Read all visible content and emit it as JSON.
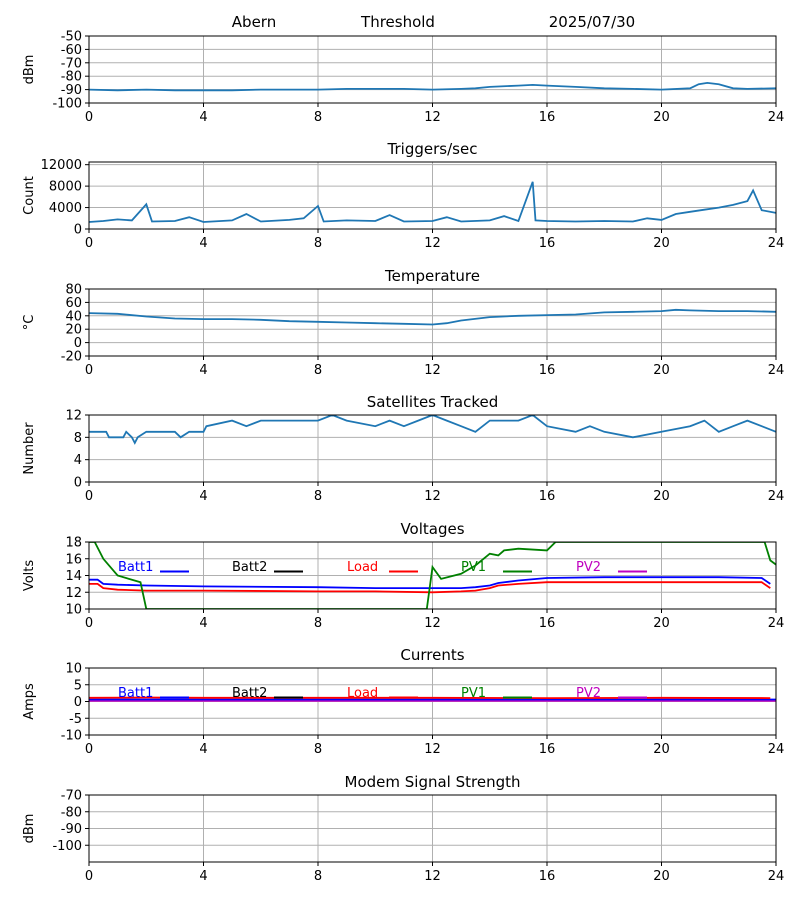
{
  "header": {
    "station": "Abern",
    "mode": "Threshold",
    "date": "2025/07/30"
  },
  "colors": {
    "series": "#1f77b4",
    "grid": "#b0b0b0",
    "batt1": "#0000ff",
    "batt2": "#000000",
    "load": "#ff0000",
    "pv1": "#008000",
    "pv2": "#bf00bf"
  },
  "chart_data": [
    {
      "type": "line",
      "title": "",
      "xlabel": "",
      "ylabel": "dBm",
      "xlim": [
        0,
        24
      ],
      "ylim": [
        -100,
        -50
      ],
      "grid": true,
      "xticks": [
        "0",
        "4",
        "8",
        "12",
        "16",
        "20",
        "24"
      ],
      "yticks": [
        "-50",
        "-60",
        "-70",
        "-80",
        "-90",
        "-100"
      ],
      "series": [
        {
          "values": [
            [
              0,
              -90
            ],
            [
              1,
              -90.5
            ],
            [
              2,
              -90
            ],
            [
              3,
              -90.5
            ],
            [
              4,
              -90.5
            ],
            [
              5,
              -90.5
            ],
            [
              6,
              -90
            ],
            [
              7,
              -90
            ],
            [
              8,
              -90
            ],
            [
              9,
              -89.5
            ],
            [
              10,
              -89.5
            ],
            [
              11,
              -89.5
            ],
            [
              12,
              -90
            ],
            [
              13,
              -89.5
            ],
            [
              13.5,
              -89
            ],
            [
              14,
              -88
            ],
            [
              15,
              -87
            ],
            [
              15.5,
              -86.5
            ],
            [
              16,
              -87
            ],
            [
              17,
              -88
            ],
            [
              18,
              -89
            ],
            [
              19,
              -89.5
            ],
            [
              20,
              -90
            ],
            [
              21,
              -89
            ],
            [
              21.3,
              -86
            ],
            [
              21.6,
              -85
            ],
            [
              22,
              -86
            ],
            [
              22.5,
              -89
            ],
            [
              23,
              -89.5
            ],
            [
              24,
              -89
            ]
          ]
        }
      ]
    },
    {
      "type": "line",
      "title": "Triggers/sec",
      "xlabel": "",
      "ylabel": "Count",
      "xlim": [
        0,
        24
      ],
      "ylim": [
        0,
        12500
      ],
      "grid": true,
      "xticks": [
        "0",
        "4",
        "8",
        "12",
        "16",
        "20",
        "24"
      ],
      "yticks": [
        "0",
        "4000",
        "8000",
        "12000"
      ],
      "series": [
        {
          "values": [
            [
              0,
              1300
            ],
            [
              0.5,
              1500
            ],
            [
              1,
              1800
            ],
            [
              1.5,
              1600
            ],
            [
              2,
              4600
            ],
            [
              2.2,
              1400
            ],
            [
              3,
              1500
            ],
            [
              3.5,
              2200
            ],
            [
              4,
              1300
            ],
            [
              5,
              1600
            ],
            [
              5.5,
              2800
            ],
            [
              6,
              1400
            ],
            [
              7,
              1700
            ],
            [
              7.5,
              2000
            ],
            [
              8,
              4300
            ],
            [
              8.2,
              1400
            ],
            [
              9,
              1600
            ],
            [
              10,
              1500
            ],
            [
              10.5,
              2600
            ],
            [
              11,
              1400
            ],
            [
              12,
              1500
            ],
            [
              12.5,
              2200
            ],
            [
              13,
              1400
            ],
            [
              14,
              1600
            ],
            [
              14.5,
              2400
            ],
            [
              15,
              1500
            ],
            [
              15.5,
              8800
            ],
            [
              15.6,
              1600
            ],
            [
              16,
              1500
            ],
            [
              17,
              1400
            ],
            [
              18,
              1500
            ],
            [
              19,
              1400
            ],
            [
              19.5,
              2000
            ],
            [
              20,
              1700
            ],
            [
              20.5,
              2800
            ],
            [
              21,
              3200
            ],
            [
              21.5,
              3600
            ],
            [
              22,
              4000
            ],
            [
              22.5,
              4500
            ],
            [
              23,
              5200
            ],
            [
              23.2,
              7200
            ],
            [
              23.5,
              3500
            ],
            [
              24,
              3000
            ]
          ]
        }
      ]
    },
    {
      "type": "line",
      "title": "Temperature",
      "xlabel": "",
      "ylabel": "°C",
      "xlim": [
        0,
        24
      ],
      "ylim": [
        -20,
        80
      ],
      "grid": true,
      "xticks": [
        "0",
        "4",
        "8",
        "12",
        "16",
        "20",
        "24"
      ],
      "yticks": [
        "-20",
        "0",
        "20",
        "40",
        "60",
        "80"
      ],
      "series": [
        {
          "values": [
            [
              0,
              44
            ],
            [
              1,
              43
            ],
            [
              2,
              39
            ],
            [
              3,
              36
            ],
            [
              4,
              35
            ],
            [
              5,
              35
            ],
            [
              6,
              34
            ],
            [
              7,
              32
            ],
            [
              8,
              31
            ],
            [
              9,
              30
            ],
            [
              10,
              29
            ],
            [
              11,
              28
            ],
            [
              12,
              27
            ],
            [
              12.5,
              29
            ],
            [
              13,
              33
            ],
            [
              14,
              38
            ],
            [
              15,
              40
            ],
            [
              16,
              41
            ],
            [
              17,
              42
            ],
            [
              18,
              45
            ],
            [
              19,
              46
            ],
            [
              20,
              47
            ],
            [
              20.5,
              49
            ],
            [
              21,
              48
            ],
            [
              22,
              47
            ],
            [
              23,
              47
            ],
            [
              24,
              46
            ]
          ]
        }
      ]
    },
    {
      "type": "line",
      "title": "Satellites Tracked",
      "xlabel": "",
      "ylabel": "Number",
      "xlim": [
        0,
        24
      ],
      "ylim": [
        0,
        12
      ],
      "grid": true,
      "xticks": [
        "0",
        "4",
        "8",
        "12",
        "16",
        "20",
        "24"
      ],
      "yticks": [
        "0",
        "4",
        "8",
        "12"
      ],
      "series": [
        {
          "values": [
            [
              0,
              9
            ],
            [
              0.6,
              9
            ],
            [
              0.7,
              8
            ],
            [
              1.2,
              8
            ],
            [
              1.3,
              9
            ],
            [
              1.5,
              8
            ],
            [
              1.6,
              7
            ],
            [
              1.7,
              8
            ],
            [
              2,
              9
            ],
            [
              3,
              9
            ],
            [
              3.2,
              8
            ],
            [
              3.5,
              9
            ],
            [
              4,
              9
            ],
            [
              4.1,
              10
            ],
            [
              5,
              11
            ],
            [
              5.5,
              10
            ],
            [
              6,
              11
            ],
            [
              7,
              11
            ],
            [
              8,
              11
            ],
            [
              8.5,
              12
            ],
            [
              9,
              11
            ],
            [
              10,
              10
            ],
            [
              10.5,
              11
            ],
            [
              11,
              10
            ],
            [
              11.5,
              11
            ],
            [
              12,
              12
            ],
            [
              12.5,
              11
            ],
            [
              13,
              10
            ],
            [
              13.5,
              9
            ],
            [
              14,
              11
            ],
            [
              15,
              11
            ],
            [
              15.5,
              12
            ],
            [
              16,
              10
            ],
            [
              17,
              9
            ],
            [
              17.5,
              10
            ],
            [
              18,
              9
            ],
            [
              19,
              8
            ],
            [
              20,
              9
            ],
            [
              21,
              10
            ],
            [
              21.5,
              11
            ],
            [
              22,
              9
            ],
            [
              22.5,
              10
            ],
            [
              23,
              11
            ],
            [
              24,
              9
            ]
          ]
        }
      ]
    },
    {
      "type": "line",
      "title": "Voltages",
      "xlabel": "",
      "ylabel": "Volts",
      "xlim": [
        0,
        24
      ],
      "ylim": [
        10,
        18
      ],
      "grid": true,
      "xticks": [
        "0",
        "4",
        "8",
        "12",
        "16",
        "20",
        "24"
      ],
      "yticks": [
        "10",
        "12",
        "14",
        "16",
        "18"
      ],
      "legend": [
        "Batt1",
        "Batt2",
        "Load",
        "PV1",
        "PV2"
      ],
      "series": [
        {
          "name": "Batt1",
          "values": [
            [
              0,
              13.5
            ],
            [
              0.3,
              13.5
            ],
            [
              0.5,
              13
            ],
            [
              1,
              12.9
            ],
            [
              2,
              12.8
            ],
            [
              4,
              12.7
            ],
            [
              8,
              12.6
            ],
            [
              10,
              12.5
            ],
            [
              12,
              12.5
            ],
            [
              13,
              12.5
            ],
            [
              13.5,
              12.6
            ],
            [
              14,
              12.8
            ],
            [
              14.3,
              13.1
            ],
            [
              15,
              13.4
            ],
            [
              16,
              13.7
            ],
            [
              18,
              13.8
            ],
            [
              20,
              13.8
            ],
            [
              22,
              13.8
            ],
            [
              23.5,
              13.7
            ],
            [
              23.8,
              13
            ]
          ]
        },
        {
          "name": "Load",
          "values": [
            [
              0,
              13.0
            ],
            [
              0.3,
              13
            ],
            [
              0.5,
              12.5
            ],
            [
              1,
              12.3
            ],
            [
              2,
              12.2
            ],
            [
              4,
              12.2
            ],
            [
              8,
              12.1
            ],
            [
              10,
              12.1
            ],
            [
              12,
              12.0
            ],
            [
              13,
              12.1
            ],
            [
              13.5,
              12.2
            ],
            [
              14,
              12.5
            ],
            [
              14.3,
              12.8
            ],
            [
              15,
              13
            ],
            [
              16,
              13.2
            ],
            [
              18,
              13.2
            ],
            [
              20,
              13.2
            ],
            [
              22,
              13.2
            ],
            [
              23.5,
              13.2
            ],
            [
              23.8,
              12.5
            ]
          ]
        },
        {
          "name": "PV1",
          "values": [
            [
              0,
              18
            ],
            [
              0.2,
              18
            ],
            [
              0.5,
              16
            ],
            [
              1,
              14
            ],
            [
              1.8,
              13.2
            ],
            [
              2,
              10
            ],
            [
              11.8,
              10
            ],
            [
              12,
              15
            ],
            [
              12.3,
              13.6
            ],
            [
              13,
              14.2
            ],
            [
              13.5,
              15.2
            ],
            [
              14,
              16.6
            ],
            [
              14.3,
              16.4
            ],
            [
              14.5,
              17.0
            ],
            [
              15,
              17.2
            ],
            [
              16,
              17.0
            ],
            [
              16.3,
              18
            ],
            [
              23.6,
              18
            ],
            [
              23.8,
              15.8
            ],
            [
              24,
              15.3
            ]
          ]
        }
      ]
    },
    {
      "type": "line",
      "title": "Currents",
      "xlabel": "",
      "ylabel": "Amps",
      "xlim": [
        0,
        24
      ],
      "ylim": [
        -10,
        10
      ],
      "grid": true,
      "xticks": [
        "0",
        "4",
        "8",
        "12",
        "16",
        "20",
        "24"
      ],
      "yticks": [
        "-10",
        "-5",
        "0",
        "5",
        "10"
      ],
      "legend": [
        "Batt1",
        "Batt2",
        "Load",
        "PV1",
        "PV2"
      ],
      "series": [
        {
          "name": "PV2",
          "values": [
            [
              0,
              0.2
            ],
            [
              24,
              0.2
            ]
          ]
        },
        {
          "name": "Batt1",
          "values": [
            [
              0,
              0.6
            ],
            [
              24,
              0.6
            ]
          ]
        },
        {
          "name": "Load",
          "values": [
            [
              0,
              1.1
            ],
            [
              2,
              1.2
            ],
            [
              4,
              1.1
            ],
            [
              8,
              1.1
            ],
            [
              12,
              1.1
            ],
            [
              16,
              1.0
            ],
            [
              20,
              1.1
            ],
            [
              23.8,
              1.0
            ]
          ]
        }
      ]
    },
    {
      "type": "line",
      "title": "Modem Signal Strength",
      "xlabel": "",
      "ylabel": "dBm",
      "xlim": [
        0,
        24
      ],
      "ylim": [
        -110,
        -70
      ],
      "grid": true,
      "xticks": [
        "0",
        "4",
        "8",
        "12",
        "16",
        "20",
        "24"
      ],
      "yticks": [
        "-70",
        "-80",
        "-90",
        "-100"
      ],
      "series": []
    }
  ]
}
